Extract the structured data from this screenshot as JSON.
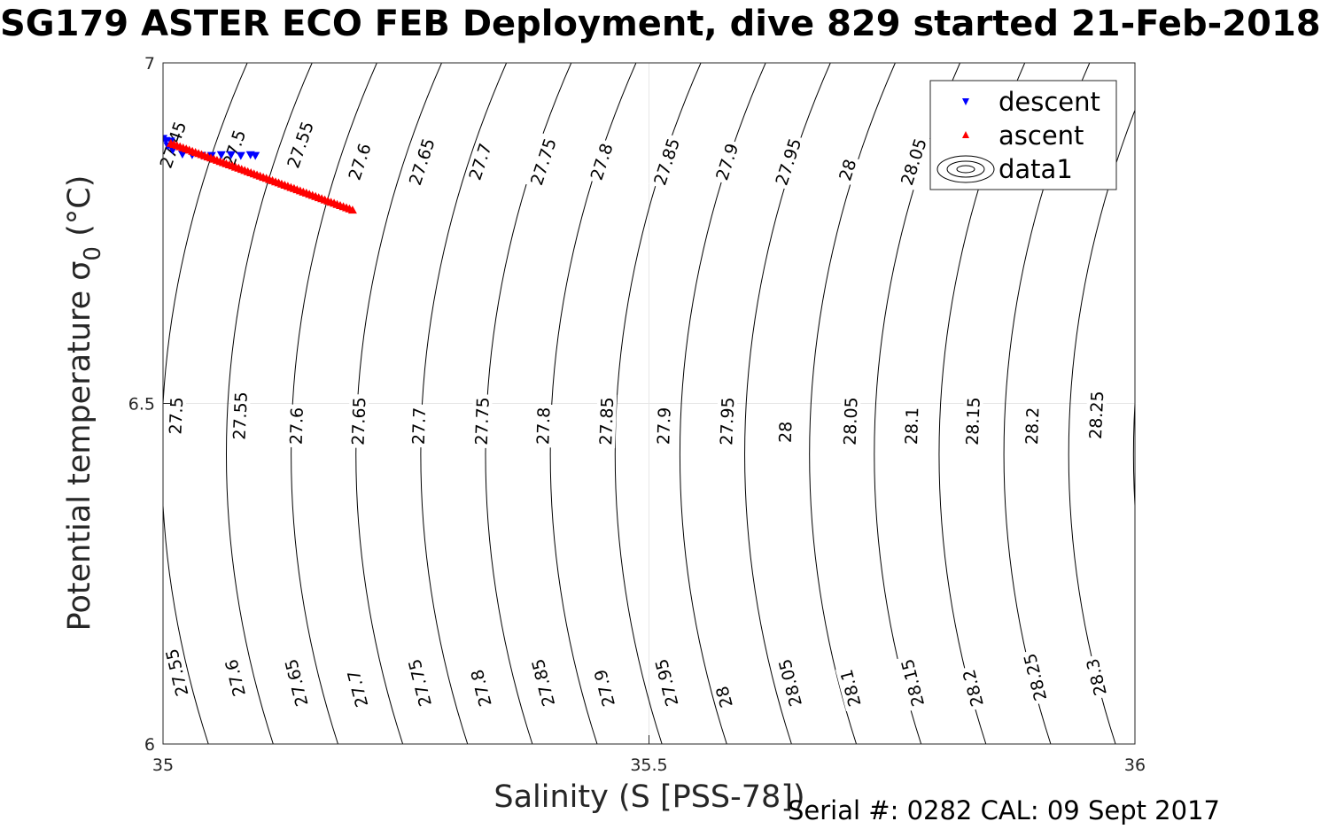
{
  "title": "SG179 ASTER ECO FEB Deployment, dive 829 started 21-Feb-2018",
  "footnote": "Serial #: 0282  CAL: 09 Sept 2017",
  "chart_data": {
    "type": "scatter",
    "title": "SG179 ASTER ECO FEB Deployment, dive 829 started 21-Feb-2018",
    "xlabel": "Salinity (S [PSS-78])",
    "ylabel_main": "Potential temperature ",
    "ylabel_greek": "σ",
    "ylabel_sub": "0",
    "ylabel_unit": " (°C)",
    "xlim": [
      35,
      36
    ],
    "ylim": [
      6,
      7
    ],
    "xticks": [
      35,
      35.5,
      36
    ],
    "yticks": [
      6,
      6.5,
      7
    ],
    "xtick_labels": [
      "35",
      "35.5",
      "36"
    ],
    "ytick_labels": [
      "6",
      "6.5",
      "7"
    ],
    "grid": true,
    "legend_position": "top-right",
    "legend": [
      "descent",
      "ascent",
      "data1"
    ],
    "series": [
      {
        "name": "descent",
        "marker": "triangle-down",
        "color": "#0000ff",
        "points": [
          [
            34.99,
            6.893
          ],
          [
            34.995,
            6.892
          ],
          [
            35.0,
            6.889
          ],
          [
            35.003,
            6.886
          ],
          [
            35.008,
            6.885
          ],
          [
            35.005,
            6.878
          ],
          [
            35.01,
            6.872
          ],
          [
            35.02,
            6.866
          ],
          [
            35.03,
            6.865
          ],
          [
            35.04,
            6.864
          ],
          [
            35.05,
            6.864
          ],
          [
            35.06,
            6.865
          ],
          [
            35.07,
            6.865
          ],
          [
            35.08,
            6.864
          ],
          [
            35.09,
            6.865
          ],
          [
            35.095,
            6.864
          ]
        ]
      },
      {
        "name": "ascent",
        "marker": "triangle-up",
        "color": "#ff0000",
        "start": [
          35.008,
          6.882
        ],
        "end": [
          35.195,
          6.784
        ],
        "count": 60
      }
    ],
    "contour_levels": [
      27.45,
      27.5,
      27.55,
      27.6,
      27.65,
      27.7,
      27.75,
      27.8,
      27.85,
      27.9,
      27.95,
      28,
      28.05,
      28.1,
      28.15,
      28.2,
      28.25,
      28.3
    ],
    "contour_labels": [
      {
        "text": "27.45",
        "s": 35.01,
        "t": 6.88
      },
      {
        "text": "27.5",
        "s": 35.073,
        "t": 6.875
      },
      {
        "text": "27.55",
        "s": 35.141,
        "t": 6.88
      },
      {
        "text": "27.6",
        "s": 35.202,
        "t": 6.855
      },
      {
        "text": "27.65",
        "s": 35.266,
        "t": 6.855
      },
      {
        "text": "27.7",
        "s": 35.326,
        "t": 6.855
      },
      {
        "text": "27.75",
        "s": 35.391,
        "t": 6.855
      },
      {
        "text": "27.8",
        "s": 35.451,
        "t": 6.855
      },
      {
        "text": "27.85",
        "s": 35.518,
        "t": 6.855
      },
      {
        "text": "27.9",
        "s": 35.58,
        "t": 6.855
      },
      {
        "text": "27.95",
        "s": 35.643,
        "t": 6.855
      },
      {
        "text": "28",
        "s": 35.704,
        "t": 6.843
      },
      {
        "text": "28.05",
        "s": 35.772,
        "t": 6.855
      },
      {
        "text": "27.5",
        "s": 35.013,
        "t": 6.482
      },
      {
        "text": "27.55",
        "s": 35.079,
        "t": 6.482
      },
      {
        "text": "27.6",
        "s": 35.137,
        "t": 6.467
      },
      {
        "text": "27.65",
        "s": 35.201,
        "t": 6.474
      },
      {
        "text": "27.7",
        "s": 35.263,
        "t": 6.467
      },
      {
        "text": "27.75",
        "s": 35.328,
        "t": 6.474
      },
      {
        "text": "27.8",
        "s": 35.391,
        "t": 6.467
      },
      {
        "text": "27.85",
        "s": 35.456,
        "t": 6.474
      },
      {
        "text": "27.9",
        "s": 35.515,
        "t": 6.467
      },
      {
        "text": "27.95",
        "s": 35.58,
        "t": 6.474
      },
      {
        "text": "28",
        "s": 35.64,
        "t": 6.458
      },
      {
        "text": "28.05",
        "s": 35.707,
        "t": 6.474
      },
      {
        "text": "28.1",
        "s": 35.77,
        "t": 6.467
      },
      {
        "text": "28.15",
        "s": 35.833,
        "t": 6.474
      },
      {
        "text": "28.2",
        "s": 35.894,
        "t": 6.467
      },
      {
        "text": "28.25",
        "s": 35.96,
        "t": 6.483
      },
      {
        "text": "27.55",
        "s": 35.014,
        "t": 6.105
      },
      {
        "text": "27.6",
        "s": 35.074,
        "t": 6.097
      },
      {
        "text": "27.65",
        "s": 35.137,
        "t": 6.09
      },
      {
        "text": "27.7",
        "s": 35.2,
        "t": 6.081
      },
      {
        "text": "27.75",
        "s": 35.264,
        "t": 6.09
      },
      {
        "text": "27.8",
        "s": 35.327,
        "t": 6.082
      },
      {
        "text": "27.85",
        "s": 35.391,
        "t": 6.09
      },
      {
        "text": "27.9",
        "s": 35.454,
        "t": 6.082
      },
      {
        "text": "27.95",
        "s": 35.518,
        "t": 6.09
      },
      {
        "text": "28",
        "s": 35.577,
        "t": 6.069
      },
      {
        "text": "28.05",
        "s": 35.645,
        "t": 6.09
      },
      {
        "text": "28.1",
        "s": 35.707,
        "t": 6.082
      },
      {
        "text": "28.15",
        "s": 35.771,
        "t": 6.09
      },
      {
        "text": "28.2",
        "s": 35.833,
        "t": 6.082
      },
      {
        "text": "28.25",
        "s": 35.897,
        "t": 6.098
      },
      {
        "text": "28.3",
        "s": 35.96,
        "t": 6.098
      }
    ]
  }
}
